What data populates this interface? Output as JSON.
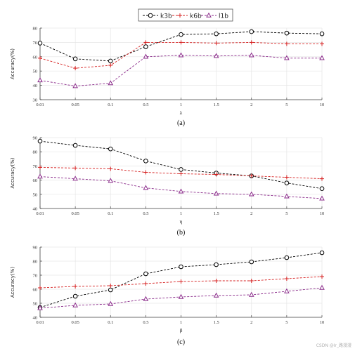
{
  "legend": {
    "placement": "top-center",
    "entries": [
      {
        "name": "k3b",
        "color": "#000000",
        "marker": "circle"
      },
      {
        "name": "k6b",
        "color": "#d62020",
        "marker": "plus"
      },
      {
        "name": "l1b",
        "color": "#8a2a8a",
        "marker": "triangle"
      }
    ]
  },
  "watermark": "CSDN @Ir_路漫漫",
  "chart_data": [
    {
      "type": "line",
      "caption": "(a)",
      "xlabel": "λ",
      "ylabel": "Accuracy(%)",
      "categories": [
        "0.01",
        "0.05",
        "0.1",
        "0.5",
        "1",
        "1.5",
        "2",
        "5",
        "10"
      ],
      "ylim": [
        30,
        80
      ],
      "yticks": [
        30,
        40,
        50,
        60,
        70,
        80
      ],
      "grid": true,
      "series": [
        {
          "name": "k3b",
          "values": [
            69.5,
            58.5,
            57,
            67,
            75.5,
            76,
            77.5,
            76.5,
            76
          ]
        },
        {
          "name": "k6b",
          "values": [
            59,
            52,
            54,
            70,
            70,
            69.5,
            70,
            69,
            69
          ]
        },
        {
          "name": "l1b",
          "values": [
            43.5,
            39.5,
            41.5,
            60,
            61,
            60.5,
            61,
            59,
            59
          ]
        }
      ]
    },
    {
      "type": "line",
      "caption": "(b)",
      "xlabel": "η",
      "ylabel": "Accuracy(%)",
      "categories": [
        "0.01",
        "0.05",
        "0.1",
        "0.5",
        "1",
        "1.5",
        "2",
        "5",
        "10"
      ],
      "ylim": [
        40,
        90
      ],
      "yticks": [
        40,
        50,
        60,
        70,
        80,
        90
      ],
      "grid": true,
      "series": [
        {
          "name": "k3b",
          "values": [
            87.5,
            84.5,
            82,
            73.5,
            67.5,
            65,
            63,
            58,
            54
          ]
        },
        {
          "name": "k6b",
          "values": [
            69,
            68.5,
            68,
            65.5,
            64.5,
            64,
            63,
            62,
            61
          ]
        },
        {
          "name": "l1b",
          "values": [
            62.5,
            61,
            59.5,
            54.5,
            52,
            50.5,
            50,
            48.5,
            47
          ]
        }
      ]
    },
    {
      "type": "line",
      "caption": "(c)",
      "xlabel": "β",
      "ylabel": "Accuracy(%)",
      "categories": [
        "0.01",
        "0.05",
        "0.1",
        "0.5",
        "1",
        "1.5",
        "2",
        "5",
        "10"
      ],
      "ylim": [
        40,
        90
      ],
      "yticks": [
        40,
        50,
        60,
        70,
        80,
        90
      ],
      "grid": true,
      "series": [
        {
          "name": "k3b",
          "values": [
            47,
            55,
            59.5,
            71,
            76,
            77.5,
            79.5,
            82.5,
            86
          ]
        },
        {
          "name": "k6b",
          "values": [
            61,
            62,
            62.5,
            64,
            65.5,
            66,
            66,
            67.5,
            69
          ]
        },
        {
          "name": "l1b",
          "values": [
            46.5,
            48.5,
            49.5,
            53,
            54.5,
            55.5,
            56,
            58.5,
            61
          ]
        }
      ]
    }
  ]
}
